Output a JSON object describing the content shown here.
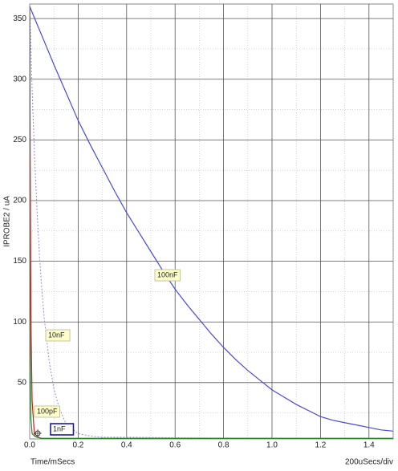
{
  "chart_data": {
    "type": "line",
    "ylabel": "IPROBE2 / uA",
    "xlabel": "Time/mSecs",
    "scale_label": "200uSecs/div",
    "xlim": [
      0,
      1.5
    ],
    "ylim": [
      3.6,
      362
    ],
    "xticks": [
      {
        "value": 0,
        "label": "0.0"
      },
      0.2,
      0.4,
      0.6,
      0.8,
      {
        "value": 1,
        "label": "1.0"
      },
      1.2,
      1.4
    ],
    "yticks": [
      50,
      100,
      150,
      200,
      250,
      300,
      350
    ],
    "grid": true,
    "series": [
      {
        "name": "100nF",
        "color": "#4848e0",
        "dash": false,
        "x": [
          0,
          0.05,
          0.1,
          0.15,
          0.2,
          0.25,
          0.3,
          0.35,
          0.4,
          0.45,
          0.5,
          0.55,
          0.6,
          0.65,
          0.7,
          0.75,
          0.8,
          0.85,
          0.9,
          0.95,
          1,
          1.05,
          1.1,
          1.15,
          1.2,
          1.25,
          1.3,
          1.35,
          1.4,
          1.45,
          1.5
        ],
        "values": [
          360,
          336,
          312,
          289,
          266,
          246,
          227,
          208,
          190,
          174,
          158,
          142,
          127,
          114,
          102,
          90,
          79,
          69,
          60,
          52,
          44,
          38,
          32,
          27,
          22,
          19,
          17,
          15,
          13,
          11,
          10
        ]
      },
      {
        "name": "10nF",
        "color": "#8c8ce8",
        "dash": true,
        "x": [
          0,
          0.01,
          0.02,
          0.03,
          0.04,
          0.05,
          0.06,
          0.08,
          0.1,
          0.12,
          0.15,
          0.2,
          0.25,
          0.3,
          0.4,
          0.6,
          0.8,
          1,
          1.5
        ],
        "values": [
          360,
          292,
          237,
          193,
          156,
          127,
          103,
          68,
          45,
          30,
          16,
          8,
          6,
          5,
          5,
          4.5,
          4.2,
          4,
          4
        ]
      },
      {
        "name": "1nF",
        "color": "#cc2020",
        "dash": false,
        "x": [
          0,
          0.002,
          0.004,
          0.006,
          0.01,
          0.02,
          0.05,
          1.5
        ],
        "values": [
          360,
          240,
          150,
          90,
          35,
          6,
          4,
          4
        ]
      },
      {
        "name": "100pF",
        "color": "#2a8a2a",
        "dash": false,
        "x": [
          0,
          0.001,
          0.002,
          0.003,
          0.005,
          0.01,
          0.02,
          0.03,
          0.05,
          1.5
        ],
        "values": [
          360,
          200,
          110,
          60,
          20,
          8,
          6,
          5,
          4,
          4
        ]
      }
    ]
  }
}
